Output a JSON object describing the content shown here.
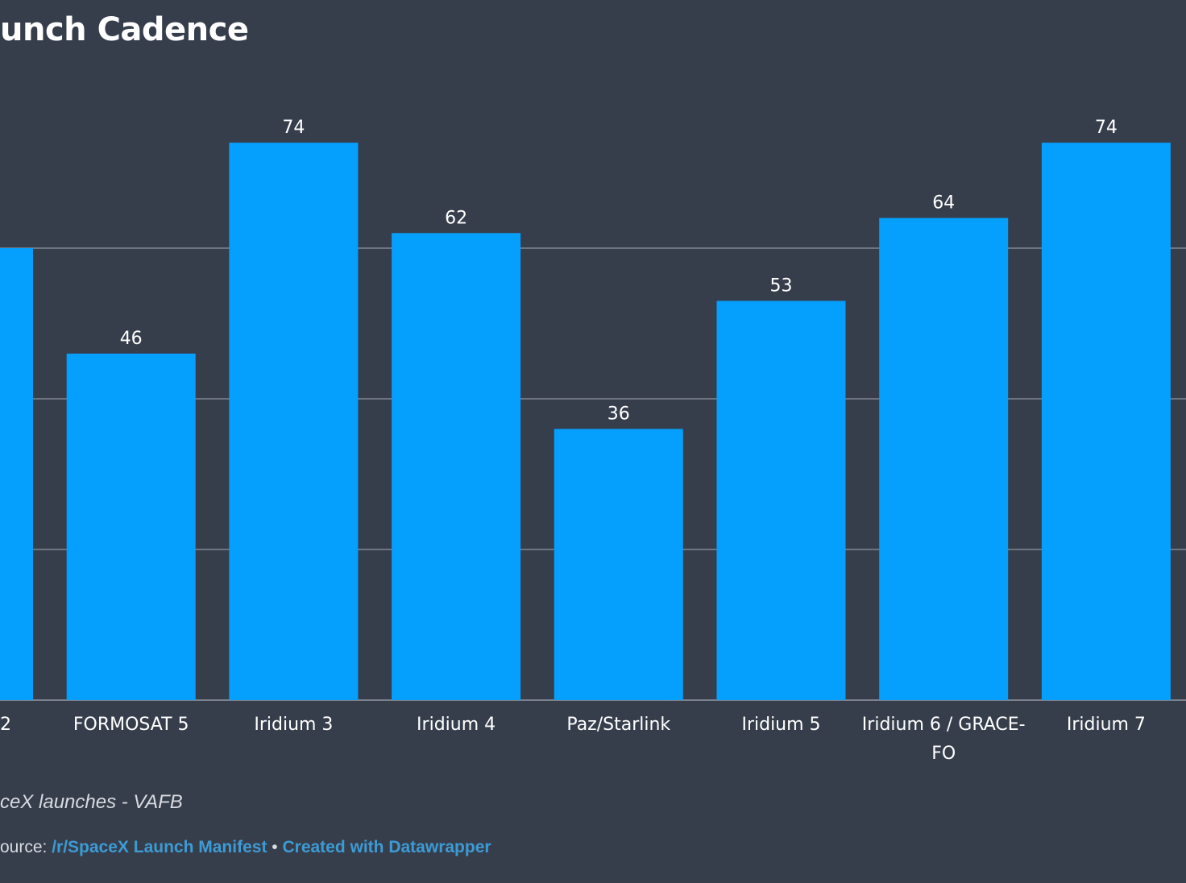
{
  "chart_data": {
    "type": "bar",
    "title": "unch Cadence",
    "categories": [
      "2",
      "FORMOSAT 5",
      "Iridium 3",
      "Iridium 4",
      "Paz/Starlink",
      "Iridium 5",
      "Iridium 6 / GRACE-FO",
      "Iridium 7"
    ],
    "category_label_lines": [
      [
        "2"
      ],
      [
        "FORMOSAT 5"
      ],
      [
        "Iridium 3"
      ],
      [
        "Iridium 4"
      ],
      [
        "Paz/Starlink"
      ],
      [
        "Iridium 5"
      ],
      [
        "Iridium 6 / GRACE-",
        "FO"
      ],
      [
        "Iridium 7"
      ]
    ],
    "values": [
      60,
      46,
      74,
      62,
      36,
      53,
      64,
      74
    ],
    "value_labels": [
      "",
      "46",
      "74",
      "62",
      "36",
      "53",
      "64",
      "74"
    ],
    "ylim": [
      0,
      80
    ],
    "y_gridlines": [
      20,
      40,
      60
    ],
    "grid": true,
    "color": "#059ffd"
  },
  "footer": {
    "note": "ceX launches - VAFB",
    "source_prefix": "ource: ",
    "source_link": "/r/SpaceX Launch Manifest",
    "separator": " • ",
    "credit_link": "Created with Datawrapper"
  }
}
